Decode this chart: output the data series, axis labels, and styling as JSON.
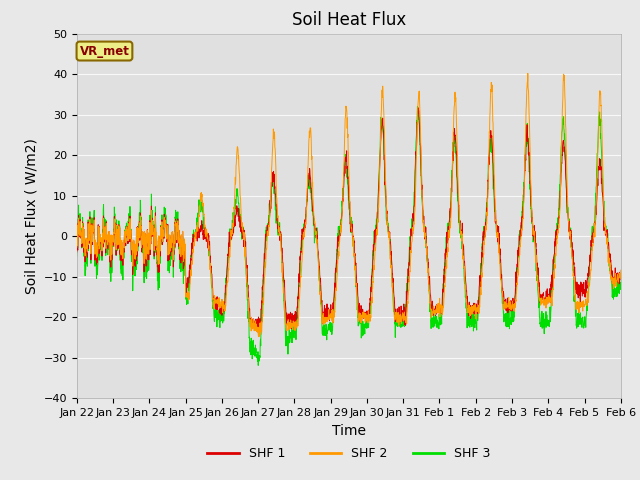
{
  "title": "Soil Heat Flux",
  "xlabel": "Time",
  "ylabel": "Soil Heat Flux ( W/m2)",
  "ylim": [
    -40,
    50
  ],
  "yticks": [
    -40,
    -30,
    -20,
    -10,
    0,
    10,
    20,
    30,
    40,
    50
  ],
  "colors": {
    "SHF 1": "#dd0000",
    "SHF 2": "#ff9900",
    "SHF 3": "#00dd00"
  },
  "legend_label": "VR_met",
  "legend_box_facecolor": "#eeee88",
  "legend_box_edgecolor": "#886600",
  "legend_text_color": "#880000",
  "fig_facecolor": "#e8e8e8",
  "ax_facecolor": "#e0e0e0",
  "grid_color": "#f8f8f8",
  "title_fontsize": 12,
  "axis_label_fontsize": 10,
  "tick_label_fontsize": 8,
  "days": 15,
  "n_per_day": 144,
  "x_tick_labels": [
    "Jan 22",
    "Jan 23",
    "Jan 24",
    "Jan 25",
    "Jan 26",
    "Jan 27",
    "Jan 28",
    "Jan 29",
    "Jan 30",
    "Jan 31",
    "Feb 1",
    "Feb 2",
    "Feb 3",
    "Feb 4",
    "Feb 5",
    "Feb 6"
  ]
}
